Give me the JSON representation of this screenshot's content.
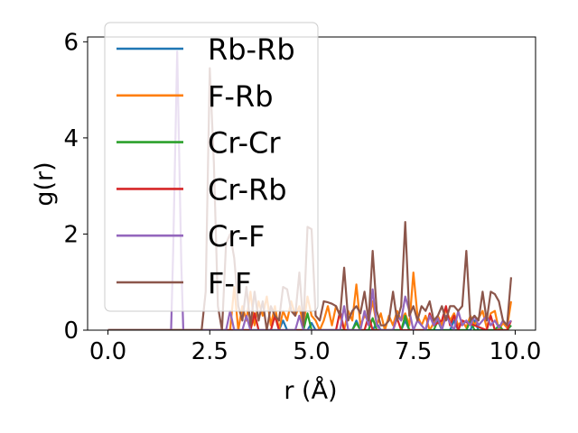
{
  "chart_data": {
    "type": "line",
    "title": "",
    "xlabel": "r (Å)",
    "ylabel": "g(r)",
    "xlim": [
      -0.5,
      10.5
    ],
    "ylim": [
      0,
      6.1
    ],
    "xticks": [
      0.0,
      2.5,
      5.0,
      7.5,
      10.0
    ],
    "xtick_labels": [
      "0.0",
      "2.5",
      "5.0",
      "7.5",
      "10.0"
    ],
    "yticks": [
      0,
      2,
      4,
      6
    ],
    "ytick_labels": [
      "0",
      "2",
      "4",
      "6"
    ],
    "grid": false,
    "legend_position": "upper-left",
    "series": [
      {
        "name": "Rb-Rb",
        "color": "#1f77b4",
        "x": [
          0,
          4.2,
          4.3,
          4.4,
          4.5,
          4.9,
          5.0,
          5.1,
          6.0,
          6.1,
          6.2,
          6.5,
          6.6,
          6.7,
          7.2,
          7.3,
          7.4,
          8.4,
          8.5,
          8.6,
          8.9,
          9.0,
          9.1,
          9.8,
          9.9
        ],
        "y": [
          0,
          0,
          0.2,
          0,
          0,
          0,
          0.15,
          0,
          0,
          0.2,
          0,
          0,
          0.15,
          0,
          0,
          0.2,
          0,
          0,
          0.2,
          0,
          0,
          0.2,
          0,
          0,
          0.1
        ]
      },
      {
        "name": "F-Rb",
        "color": "#ff7f0e",
        "x": [
          0,
          3.0,
          3.1,
          3.2,
          3.3,
          3.4,
          3.5,
          3.6,
          3.7,
          3.8,
          3.9,
          4.0,
          4.1,
          4.2,
          4.3,
          4.4,
          4.5,
          4.6,
          4.7,
          4.8,
          4.9,
          5.0,
          5.1,
          5.2,
          5.3,
          5.4,
          5.5,
          5.6,
          5.7,
          5.8,
          5.9,
          6.0,
          6.1,
          6.2,
          6.3,
          6.4,
          6.5,
          6.6,
          6.7,
          6.8,
          6.9,
          7.0,
          7.1,
          7.2,
          7.3,
          7.4,
          7.5,
          7.6,
          7.7,
          7.8,
          7.9,
          8.0,
          8.1,
          8.2,
          8.3,
          8.4,
          8.5,
          8.6,
          8.7,
          8.8,
          8.9,
          9.0,
          9.1,
          9.2,
          9.3,
          9.4,
          9.5,
          9.6,
          9.7,
          9.8,
          9.9
        ],
        "y": [
          0,
          0,
          0.9,
          0,
          0.5,
          0.2,
          0.8,
          0.1,
          0.6,
          0.3,
          0.7,
          0.1,
          0.5,
          0,
          0.4,
          0.2,
          0.6,
          0.3,
          0.5,
          0.1,
          0.7,
          0.3,
          0.2,
          0,
          0.2,
          0.5,
          0.1,
          0.5,
          0.3,
          0,
          0.4,
          0.2,
          0.95,
          0.1,
          0.3,
          0.2,
          0.6,
          0.1,
          0.35,
          0,
          0.3,
          0.1,
          0.4,
          0.2,
          0.35,
          0.1,
          1.2,
          0.3,
          0.1,
          0.3,
          0,
          0.15,
          0.3,
          0.1,
          0.45,
          0.2,
          0.35,
          0.1,
          0.2,
          0.05,
          0.3,
          0.1,
          0.25,
          0.4,
          0.05,
          0.35,
          0.4,
          0,
          0.15,
          0.05,
          0.6
        ]
      },
      {
        "name": "Cr-Cr",
        "color": "#2ca02c",
        "x": [
          0,
          4.8,
          4.9,
          5.0,
          6.0,
          6.1,
          6.2,
          6.4,
          6.5,
          6.6,
          7.2,
          7.3,
          7.4,
          8.0,
          8.1,
          8.2,
          8.8,
          8.9,
          9.0,
          9.5,
          9.6,
          9.7,
          9.8,
          9.9
        ],
        "y": [
          0,
          0,
          0.35,
          0,
          0,
          0.15,
          0,
          0,
          0.25,
          0,
          0,
          0.3,
          0,
          0,
          0.2,
          0,
          0,
          0.2,
          0,
          0,
          0.1,
          0,
          0,
          0.1
        ]
      },
      {
        "name": "Cr-Rb",
        "color": "#d62728",
        "x": [
          0,
          3.5,
          3.6,
          3.7,
          4.0,
          4.1,
          4.2,
          5.6,
          5.7,
          5.8,
          6.3,
          6.4,
          6.5,
          7.0,
          7.1,
          7.2,
          7.8,
          7.9,
          8.0,
          8.2,
          8.3,
          8.4,
          8.5,
          8.6,
          8.7,
          9.3,
          9.4,
          9.5,
          9.8,
          9.9
        ],
        "y": [
          0,
          0,
          0.35,
          0,
          0,
          0.3,
          0,
          0,
          0.4,
          0,
          0,
          0.3,
          0,
          0,
          0.25,
          0,
          0,
          0.35,
          0.1,
          0.2,
          0.5,
          0.1,
          0.3,
          0,
          0.2,
          0,
          0.3,
          0,
          0,
          0.2
        ]
      },
      {
        "name": "Cr-F",
        "color": "#9467bd",
        "x": [
          0,
          1.55,
          1.6,
          1.7,
          1.8,
          1.85,
          2.9,
          3.0,
          3.1,
          3.3,
          3.4,
          3.5,
          4.6,
          4.7,
          4.8,
          5.7,
          5.8,
          5.9,
          6.2,
          6.3,
          6.4,
          6.5,
          6.6,
          6.7,
          7.0,
          7.1,
          7.2,
          7.3,
          7.4,
          7.5,
          7.6,
          7.8,
          7.9,
          8.0,
          8.1,
          8.2,
          8.3,
          8.5,
          8.6,
          8.7,
          8.8,
          8.9,
          9.0,
          9.1,
          9.2,
          9.3,
          9.4,
          9.5,
          9.6,
          9.7,
          9.8,
          9.9
        ],
        "y": [
          0,
          0,
          1.6,
          5.8,
          1.4,
          0,
          0,
          0.4,
          0,
          0,
          0.3,
          0,
          0,
          0.3,
          0,
          0,
          0.5,
          0,
          0,
          0.4,
          0.1,
          0.85,
          0.1,
          0,
          0,
          0.3,
          0.2,
          0.7,
          0.4,
          0,
          0.2,
          0,
          0.3,
          0.1,
          0.25,
          0,
          0.3,
          0,
          0.4,
          0.1,
          0.2,
          0.1,
          0.3,
          0.1,
          0.2,
          0.3,
          0.1,
          0.2,
          0.05,
          0.2,
          0.1,
          0.2
        ]
      },
      {
        "name": "F-F",
        "color": "#8c564b",
        "x": [
          0,
          2.3,
          2.4,
          2.5,
          2.6,
          2.7,
          2.8,
          2.9,
          3.0,
          3.1,
          3.2,
          3.3,
          3.4,
          3.5,
          3.6,
          3.7,
          3.8,
          3.9,
          4.0,
          4.1,
          4.2,
          4.3,
          4.4,
          4.5,
          4.6,
          4.7,
          4.8,
          4.9,
          5.0,
          5.1,
          5.2,
          5.3,
          5.4,
          5.5,
          5.6,
          5.7,
          5.8,
          5.9,
          6.0,
          6.1,
          6.2,
          6.3,
          6.4,
          6.5,
          6.6,
          6.7,
          6.8,
          6.9,
          7.0,
          7.1,
          7.2,
          7.3,
          7.4,
          7.5,
          7.6,
          7.7,
          7.8,
          7.9,
          8.0,
          8.1,
          8.2,
          8.3,
          8.4,
          8.5,
          8.6,
          8.7,
          8.8,
          8.9,
          9.0,
          9.1,
          9.2,
          9.3,
          9.4,
          9.5,
          9.6,
          9.7,
          9.8,
          9.9
        ],
        "y": [
          0,
          0,
          0.8,
          5.45,
          3.5,
          0.5,
          0,
          1.8,
          2.0,
          1.5,
          0.5,
          0.2,
          0.9,
          0.1,
          0.8,
          0.2,
          0.6,
          0,
          0.5,
          0.3,
          0.2,
          0.9,
          0.85,
          0.4,
          0.3,
          1.2,
          0.1,
          2.15,
          2.1,
          0.3,
          0.2,
          0.6,
          0.58,
          0.55,
          0.5,
          0.3,
          1.3,
          0.2,
          0.4,
          0.5,
          0.35,
          0.8,
          0.2,
          1.65,
          0.4,
          0.1,
          0.1,
          0.2,
          0.8,
          0.2,
          0.5,
          2.25,
          0.3,
          0.5,
          0.2,
          0.5,
          0.4,
          0.6,
          0.2,
          0.3,
          0.5,
          0.2,
          0.5,
          0.5,
          0.4,
          0.5,
          1.65,
          0.2,
          0.3,
          0.2,
          0.8,
          0.2,
          0.8,
          0.75,
          0.6,
          0.2,
          0.1,
          1.1
        ]
      }
    ]
  }
}
